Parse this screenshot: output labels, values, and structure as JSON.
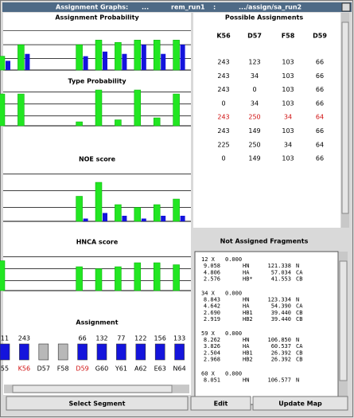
{
  "window": {
    "title": [
      "Assignment Graphs:",
      "...",
      "rem_run1",
      ":",
      ".../assign/sa_run2"
    ]
  },
  "graphs": {
    "columns": [
      "55",
      "K56",
      "D57",
      "F58",
      "D59",
      "G60",
      "Y61",
      "A62",
      "E63",
      "N64"
    ],
    "highlight": [
      1,
      4
    ],
    "top_labels": [
      "11",
      "243",
      null,
      null,
      "66",
      "132",
      "77",
      "122",
      "156",
      "133"
    ],
    "boxes": [
      "blue",
      "blue",
      "grey",
      "grey",
      "blue",
      "blue",
      "blue",
      "blue",
      "blue",
      "blue"
    ],
    "assignment_title": "Assignment",
    "colors": {
      "green": "#22e622",
      "blue": "#1414dc",
      "grey": "#b8b8b8",
      "highlight": "#d01010"
    },
    "panels": [
      {
        "title": "Assignment Probability",
        "green": [
          0.3,
          0.55,
          0,
          0,
          0.55,
          0.65,
          0.6,
          0.65,
          0.65,
          0.65
        ],
        "blue": [
          0.2,
          0.35,
          0,
          0,
          0.3,
          0.4,
          0.35,
          0.55,
          0.35,
          0.55
        ]
      },
      {
        "title": "Type Probability",
        "green": [
          0.8,
          0.8,
          0,
          0,
          0.1,
          0.9,
          0.15,
          0.9,
          0.2,
          0.8
        ],
        "blue": [
          0,
          0,
          0,
          0,
          0,
          0,
          0,
          0,
          0,
          0
        ]
      },
      {
        "title": "NOE score",
        "green": [
          0,
          0,
          0,
          0,
          0.45,
          0.7,
          0.3,
          0.25,
          0.3,
          0.4
        ],
        "blue": [
          0,
          0,
          0,
          0,
          0.05,
          0.15,
          0.1,
          0.05,
          0.1,
          0.1
        ]
      },
      {
        "title": "HNCA score",
        "green": [
          0.75,
          0,
          0,
          0,
          0.6,
          0.55,
          0.6,
          0.7,
          0.7,
          0.65
        ],
        "blue": [
          0,
          0,
          0,
          0,
          0,
          0,
          0,
          0,
          0,
          0
        ]
      }
    ]
  },
  "possible": {
    "title": "Possible Assignments",
    "headers": [
      "K56",
      "D57",
      "F58",
      "D59"
    ],
    "highlight_row": 4,
    "rows": [
      [
        "243",
        "123",
        "103",
        "66"
      ],
      [
        "243",
        "34",
        "103",
        "66"
      ],
      [
        "243",
        "0",
        "103",
        "66"
      ],
      [
        "0",
        "34",
        "103",
        "66"
      ],
      [
        "243",
        "250",
        "34",
        "64"
      ],
      [
        "243",
        "149",
        "103",
        "66"
      ],
      [
        "225",
        "250",
        "34",
        "64"
      ],
      [
        "0",
        "149",
        "103",
        "66"
      ]
    ]
  },
  "fragments": {
    "title": "Not Assigned Fragments",
    "items": [
      {
        "id": "12 X",
        "score": "0.000",
        "lines": [
          [
            "9.058",
            "HN",
            "121.338",
            "N"
          ],
          [
            "4.806",
            "HA",
            "57.034",
            "CA"
          ],
          [
            "2.576",
            "HB*",
            "41.553",
            "CB"
          ]
        ]
      },
      {
        "id": "34 X",
        "score": "0.000",
        "lines": [
          [
            "8.843",
            "HN",
            "123.334",
            "N"
          ],
          [
            "4.642",
            "HA",
            "54.390",
            "CA"
          ],
          [
            "2.690",
            "HB1",
            "39.440",
            "CB"
          ],
          [
            "2.919",
            "HB2",
            "39.440",
            "CB"
          ]
        ]
      },
      {
        "id": "59 X",
        "score": "0.000",
        "lines": [
          [
            "8.262",
            "HN",
            "106.850",
            "N"
          ],
          [
            "3.826",
            "HA",
            "60.537",
            "CA"
          ],
          [
            "2.504",
            "HB1",
            "26.392",
            "CB"
          ],
          [
            "2.968",
            "HB2",
            "26.392",
            "CB"
          ]
        ]
      },
      {
        "id": "60 X",
        "score": "0.000",
        "lines": [
          [
            "8.051",
            "HN",
            "106.577",
            "N"
          ]
        ]
      }
    ]
  },
  "buttons": [
    "Select Segment",
    "Edit",
    "Update Map"
  ]
}
